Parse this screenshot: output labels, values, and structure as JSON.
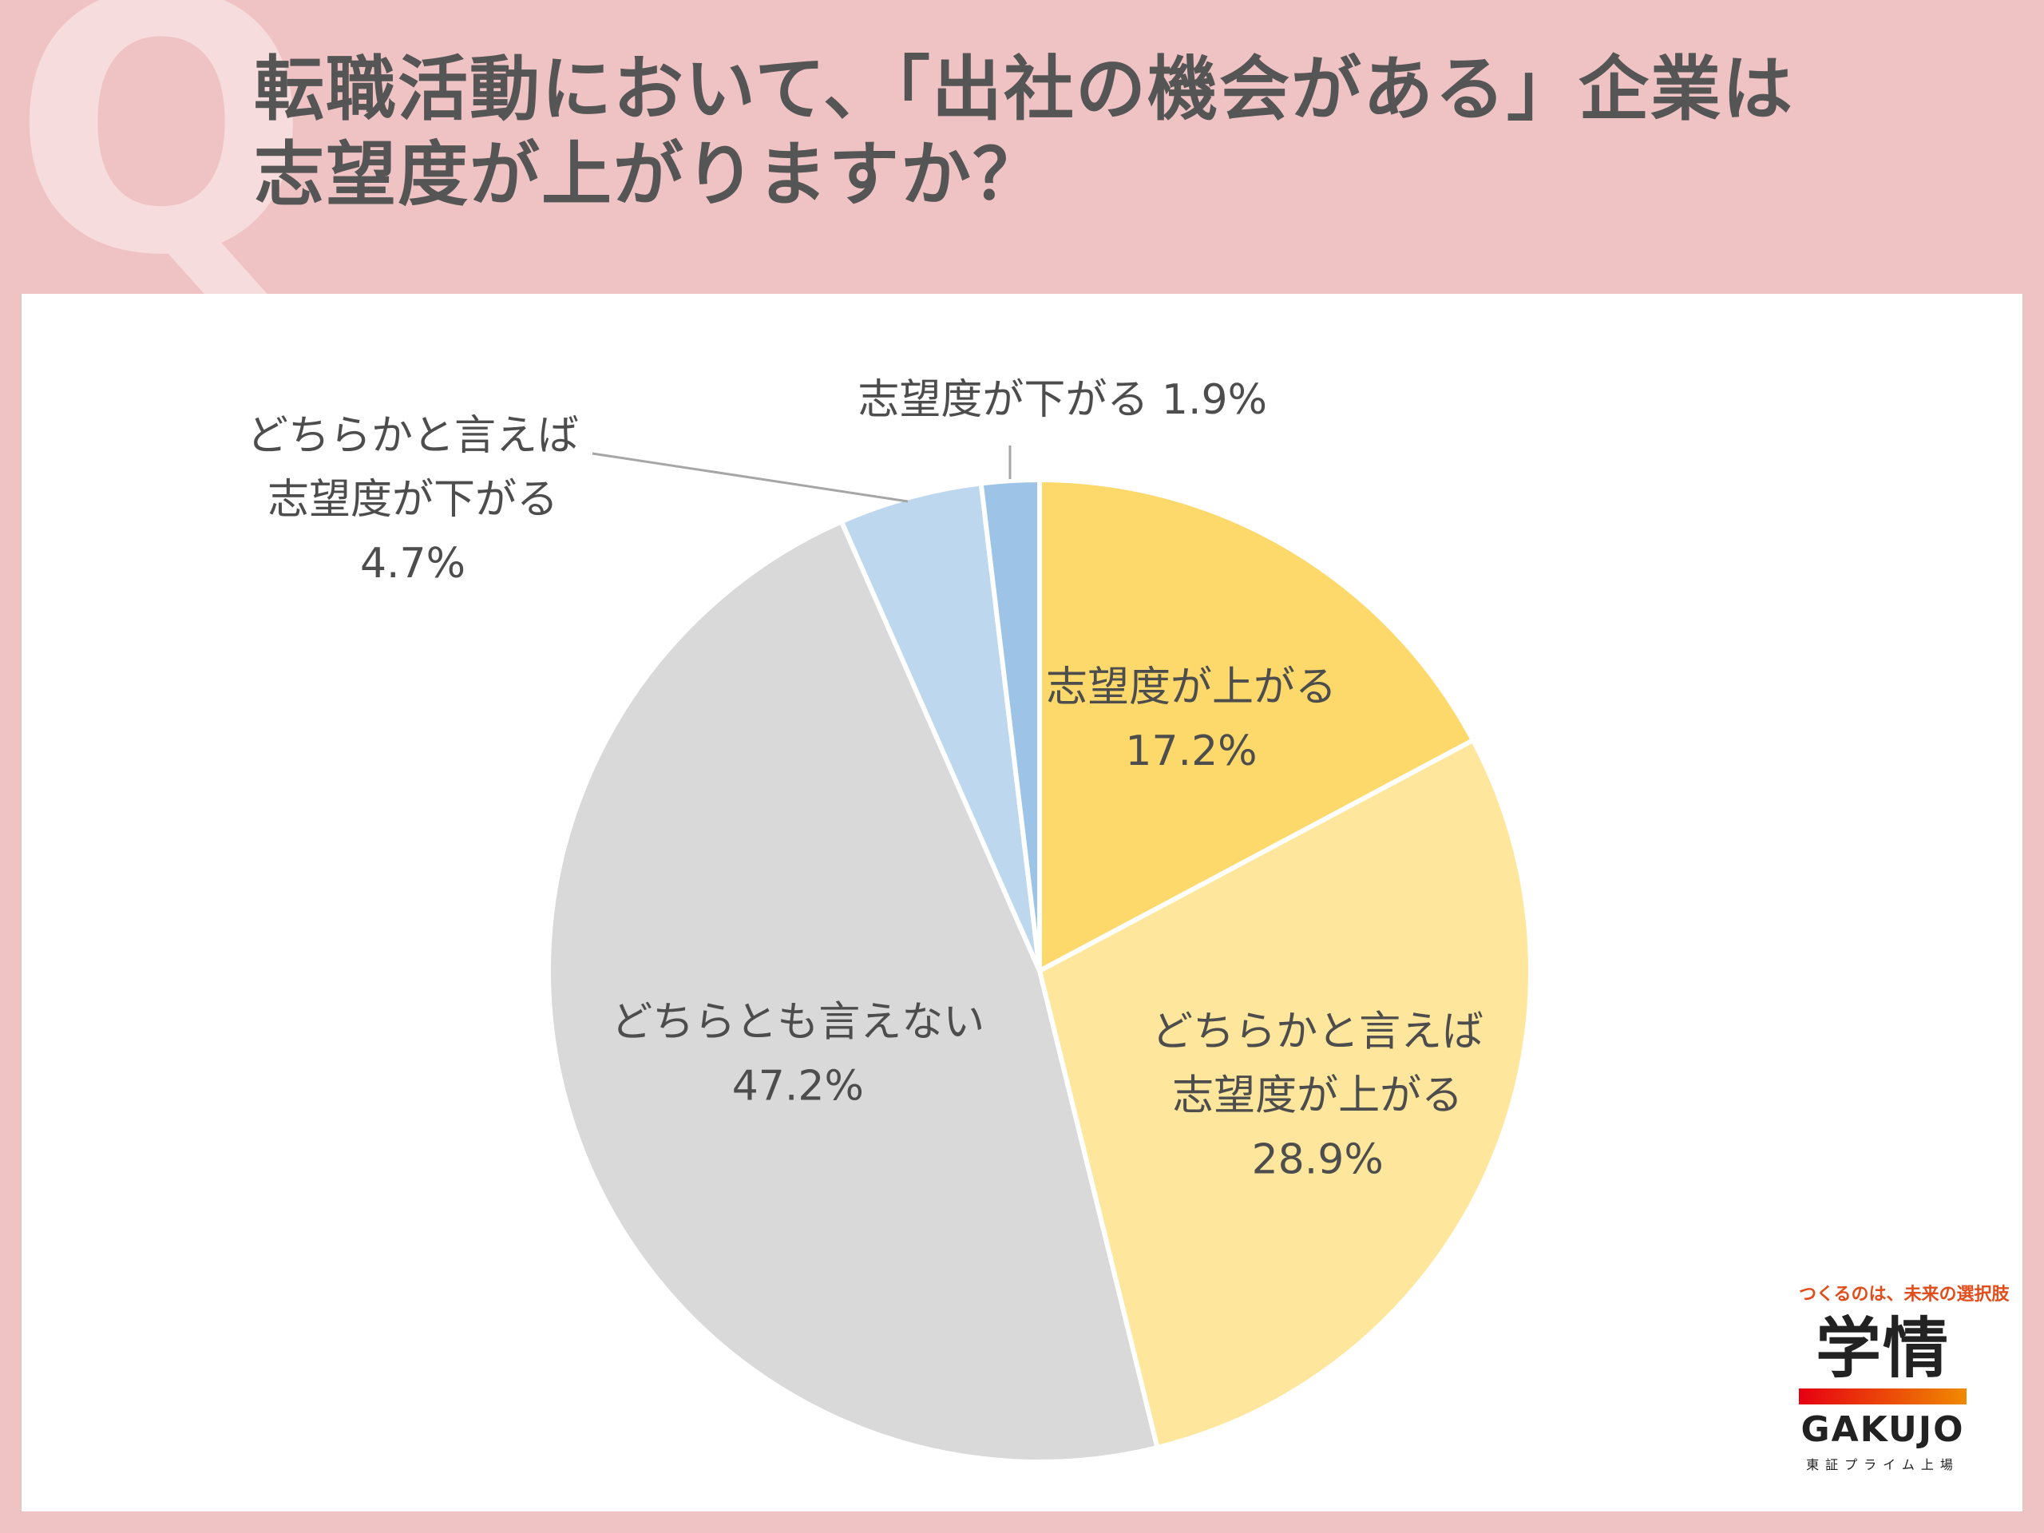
{
  "header": {
    "q_mark": "Q",
    "title_line1": "転職活動において、「出社の機会がある」企業は",
    "title_line2": "志望度が上がりますか？"
  },
  "chart_data": {
    "type": "pie",
    "start": "12 o'clock, clockwise",
    "slices": [
      {
        "label": "志望度が上がる",
        "lines": [
          "志望度が上がる",
          "17.2%"
        ],
        "value": 17.2,
        "pct_text": "17.2%",
        "color": "#fdd96b"
      },
      {
        "label": "どちらかと言えば志望度が上がる",
        "lines": [
          "どちらかと言えば",
          "志望度が上がる",
          "28.9%"
        ],
        "value": 28.9,
        "pct_text": "28.9%",
        "color": "#fee79c"
      },
      {
        "label": "どちらとも言えない",
        "lines": [
          "どちらとも言えない",
          "47.2%"
        ],
        "value": 47.2,
        "pct_text": "47.2%",
        "color": "#d9d9d9"
      },
      {
        "label": "どちらかと言えば志望度が下がる",
        "lines": [
          "どちらかと言えば",
          "志望度が下がる",
          "4.7%"
        ],
        "value": 4.7,
        "pct_text": "4.7%",
        "color": "#bdd7ee"
      },
      {
        "label": "志望度が下がる",
        "lines": [
          "志望度が下がる 1.9%"
        ],
        "value": 1.9,
        "pct_text": "1.9%",
        "color": "#9dc3e6"
      }
    ]
  },
  "brand": {
    "tagline": "つくるのは、未来の選択肢",
    "logo_kanji": "学情",
    "logo_en": "GAKUJO",
    "listing": "東証プライム上場"
  }
}
